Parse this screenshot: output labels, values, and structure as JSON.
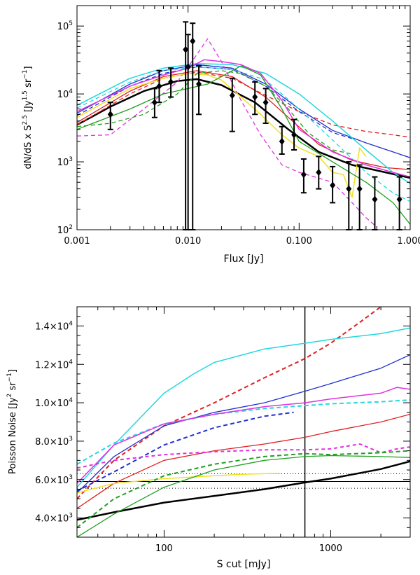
{
  "chart_data": [
    {
      "type": "line",
      "title": "",
      "xlabel": "Flux [Jy]",
      "ylabel": "dN/dS x S^2.5 [Jy^1.5 sr^-1]",
      "xscale": "log",
      "yscale": "log",
      "xlim": [
        0.001,
        1.0
      ],
      "ylim": [
        100,
        200000
      ],
      "x_ticks": [
        0.001,
        0.01,
        0.1,
        1.0
      ],
      "x_tick_labels": [
        "0.001",
        "0.010",
        "0.100",
        "1.000"
      ],
      "y_ticks": [
        100,
        1000,
        10000,
        100000
      ],
      "y_tick_labels": [
        "10^2",
        "10^3",
        "10^4",
        "10^5"
      ],
      "series": [
        {
          "name": "black model",
          "color": "#000000",
          "dash": "solid",
          "width": 2.5,
          "x": [
            0.001,
            0.002,
            0.004,
            0.008,
            0.012,
            0.02,
            0.04,
            0.08,
            0.15,
            0.3,
            0.6,
            1.0
          ],
          "y": [
            3500,
            6500,
            11000,
            15500,
            16500,
            13500,
            7500,
            3000,
            1400,
            900,
            700,
            580
          ]
        },
        {
          "name": "red solid",
          "color": "#e02020",
          "dash": "solid",
          "width": 1.3,
          "x": [
            0.001,
            0.003,
            0.006,
            0.012,
            0.025,
            0.05,
            0.08,
            0.15,
            0.3,
            0.6,
            1.0
          ],
          "y": [
            3800,
            11000,
            18000,
            22000,
            18000,
            9000,
            4500,
            1800,
            1050,
            820,
            770
          ]
        },
        {
          "name": "red dashed",
          "color": "#e02020",
          "dash": "6,4",
          "width": 1.3,
          "x": [
            0.001,
            0.003,
            0.006,
            0.012,
            0.025,
            0.05,
            0.1,
            0.2,
            0.4,
            0.7,
            1.0
          ],
          "y": [
            3500,
            10000,
            17000,
            21000,
            17000,
            9500,
            5500,
            3500,
            2800,
            2500,
            2300
          ]
        },
        {
          "name": "blue solid",
          "color": "#2030d0",
          "dash": "solid",
          "width": 1.3,
          "x": [
            0.001,
            0.003,
            0.006,
            0.012,
            0.025,
            0.05,
            0.1,
            0.2,
            0.4,
            0.7,
            1.0
          ],
          "y": [
            5200,
            14000,
            22000,
            27000,
            24000,
            14000,
            6000,
            2900,
            1900,
            1400,
            1150
          ]
        },
        {
          "name": "blue dashed",
          "color": "#2030d0",
          "dash": "6,4",
          "width": 1.3,
          "x": [
            0.001,
            0.003,
            0.006,
            0.012,
            0.025,
            0.05,
            0.1,
            0.2,
            0.3
          ],
          "y": [
            4800,
            13000,
            20000,
            25000,
            23000,
            13000,
            5500,
            2700,
            2200
          ]
        },
        {
          "name": "cyan solid",
          "color": "#20d8e0",
          "dash": "solid",
          "width": 1.5,
          "x": [
            0.001,
            0.003,
            0.006,
            0.012,
            0.025,
            0.05,
            0.1,
            0.2,
            0.4,
            0.7,
            1.0
          ],
          "y": [
            6800,
            17000,
            24000,
            28000,
            27000,
            20000,
            10000,
            4000,
            1500,
            700,
            480
          ]
        },
        {
          "name": "cyan dashed",
          "color": "#20d8e0",
          "dash": "6,4",
          "width": 1.3,
          "x": [
            0.001,
            0.003,
            0.006,
            0.012,
            0.025,
            0.05,
            0.1,
            0.2,
            0.4,
            0.7,
            1.0
          ],
          "y": [
            6200,
            15000,
            22000,
            25000,
            23000,
            16000,
            6000,
            2100,
            700,
            350,
            260
          ]
        },
        {
          "name": "magenta solid",
          "color": "#e030e0",
          "dash": "solid",
          "width": 1.5,
          "x": [
            0.001,
            0.003,
            0.006,
            0.01,
            0.014,
            0.02,
            0.03,
            0.045,
            0.07,
            0.1,
            0.2,
            0.4,
            0.7,
            1.0
          ],
          "y": [
            5500,
            13000,
            19000,
            24000,
            32000,
            30000,
            27000,
            20000,
            8000,
            3000,
            1400,
            900,
            700,
            600
          ]
        },
        {
          "name": "magenta dashed",
          "color": "#e030e0",
          "dash": "6,4",
          "width": 1.3,
          "x": [
            0.001,
            0.002,
            0.004,
            0.008,
            0.012,
            0.015,
            0.02,
            0.03,
            0.045,
            0.07,
            0.1,
            0.2,
            0.3,
            0.4,
            0.5
          ],
          "y": [
            2400,
            2500,
            6000,
            15000,
            38000,
            65000,
            30000,
            8000,
            2500,
            900,
            700,
            500,
            250,
            150,
            110
          ]
        },
        {
          "name": "yellow solid",
          "color": "#f0e020",
          "dash": "solid",
          "width": 1.5,
          "x": [
            0.001,
            0.003,
            0.006,
            0.01,
            0.015,
            0.02,
            0.03,
            0.045,
            0.07,
            0.1,
            0.15,
            0.2,
            0.25,
            0.3,
            0.35,
            0.4
          ],
          "y": [
            4500,
            12000,
            17000,
            20000,
            19000,
            16000,
            9000,
            5000,
            2500,
            1600,
            1200,
            700,
            650,
            300,
            1600,
            1200
          ]
        },
        {
          "name": "green solid",
          "color": "#20a020",
          "dash": "solid",
          "width": 1.3,
          "x": [
            0.001,
            0.003,
            0.006,
            0.01,
            0.015,
            0.02,
            0.03,
            0.045,
            0.07,
            0.1,
            0.2,
            0.4,
            0.7,
            1.0
          ],
          "y": [
            3000,
            6000,
            10000,
            12000,
            14000,
            18000,
            26000,
            19000,
            6000,
            2000,
            1000,
            500,
            250,
            120
          ]
        },
        {
          "name": "green dashed",
          "color": "#20a020",
          "dash": "6,4",
          "width": 1.3,
          "x": [
            0.001,
            0.002,
            0.004,
            0.008,
            0.012,
            0.02,
            0.03,
            0.05,
            0.08,
            0.12,
            0.2,
            0.3
          ],
          "y": [
            3300,
            3700,
            5000,
            10000,
            20000,
            22000,
            20000,
            13000,
            6000,
            2700,
            1500,
            1300
          ]
        }
      ],
      "points": {
        "name": "data points with error bars",
        "color": "#000000",
        "x": [
          0.002,
          0.005,
          0.0055,
          0.007,
          0.0095,
          0.01,
          0.011,
          0.0125,
          0.025,
          0.04,
          0.05,
          0.07,
          0.09,
          0.11,
          0.15,
          0.2,
          0.28,
          0.35,
          0.48,
          0.8
        ],
        "y": [
          5000,
          7500,
          13000,
          15000,
          45000,
          25000,
          60000,
          14000,
          9500,
          9000,
          7500,
          2000,
          2500,
          650,
          700,
          450,
          400,
          400,
          280,
          280
        ],
        "y_low": [
          3000,
          4500,
          7500,
          9000,
          100,
          100,
          100,
          5000,
          2800,
          5000,
          3700,
          1300,
          1500,
          350,
          400,
          250,
          100,
          100,
          100,
          100
        ],
        "y_high": [
          7500,
          12000,
          22000,
          24000,
          115000,
          75000,
          110000,
          26000,
          17000,
          15000,
          12000,
          3300,
          4200,
          1100,
          1200,
          850,
          1000,
          900,
          600,
          600
        ]
      }
    },
    {
      "type": "line",
      "title": "",
      "xlabel": "S cut [mJy]",
      "ylabel": "Poisson Noise [Jy^2 sr^-1]",
      "xscale": "log",
      "yscale": "linear",
      "xlim": [
        30,
        3000
      ],
      "ylim": [
        3000,
        15000
      ],
      "x_ticks": [
        100,
        1000
      ],
      "x_tick_labels": [
        "100",
        "1000"
      ],
      "y_ticks": [
        4000,
        6000,
        8000,
        10000,
        12000,
        14000
      ],
      "y_tick_labels": [
        "4.0×10^3",
        "6.0×10^3",
        "8.0×10^3",
        "1.0×10^4",
        "1.2×10^4",
        "1.4×10^4"
      ],
      "vertical_line_x": 700,
      "horizontal_dotted_y": [
        5550,
        6300
      ],
      "horizontal_solid_y": 5900,
      "series": [
        {
          "name": "black model",
          "color": "#000000",
          "dash": "solid",
          "width": 2.5,
          "x": [
            30,
            50,
            100,
            200,
            400,
            700,
            1000,
            2000,
            3000
          ],
          "y": [
            3900,
            4300,
            4800,
            5150,
            5500,
            5850,
            6050,
            6550,
            6950
          ]
        },
        {
          "name": "red solid",
          "color": "#e02020",
          "dash": "solid",
          "width": 1.3,
          "x": [
            30,
            50,
            100,
            200,
            400,
            700,
            1000,
            2000,
            3000
          ],
          "y": [
            4500,
            5800,
            7000,
            7500,
            7850,
            8200,
            8500,
            9000,
            9400
          ]
        },
        {
          "name": "red dashed",
          "color": "#e02020",
          "dash": "6,4",
          "width": 2,
          "x": [
            30,
            50,
            100,
            200,
            400,
            700,
            1000,
            1500,
            2000
          ],
          "y": [
            5000,
            7000,
            8800,
            10000,
            11300,
            12300,
            13100,
            14200,
            15000
          ]
        },
        {
          "name": "blue solid",
          "color": "#2030d0",
          "dash": "solid",
          "width": 1.3,
          "x": [
            30,
            50,
            100,
            200,
            400,
            700,
            1000,
            2000,
            3000
          ],
          "y": [
            5300,
            7200,
            8800,
            9500,
            10000,
            10600,
            11000,
            11800,
            12500
          ]
        },
        {
          "name": "blue dashed",
          "color": "#2030d0",
          "dash": "6,4",
          "width": 2,
          "x": [
            30,
            50,
            100,
            200,
            400,
            600
          ],
          "y": [
            5400,
            6400,
            7800,
            8700,
            9300,
            9500
          ]
        },
        {
          "name": "cyan solid",
          "color": "#20d8e0",
          "dash": "solid",
          "width": 1.5,
          "x": [
            30,
            50,
            100,
            150,
            200,
            400,
            700,
            1000,
            2000,
            3000
          ],
          "y": [
            5600,
            7800,
            10500,
            11500,
            12100,
            12800,
            13100,
            13300,
            13600,
            13900
          ]
        },
        {
          "name": "cyan dashed",
          "color": "#20d8e0",
          "dash": "6,4",
          "width": 2,
          "x": [
            30,
            50,
            100,
            200,
            400,
            700,
            1000,
            2000,
            3000
          ],
          "y": [
            6800,
            7900,
            8900,
            9400,
            9700,
            9850,
            9950,
            10050,
            10150
          ]
        },
        {
          "name": "magenta solid",
          "color": "#e030e0",
          "dash": "solid",
          "width": 1.5,
          "x": [
            30,
            50,
            100,
            200,
            400,
            700,
            1000,
            2000,
            2500,
            3000
          ],
          "y": [
            5800,
            7800,
            8900,
            9400,
            9800,
            10000,
            10200,
            10500,
            10800,
            10700
          ]
        },
        {
          "name": "magenta dashed",
          "color": "#e030e0",
          "dash": "5,4",
          "width": 2,
          "x": [
            30,
            50,
            100,
            200,
            400,
            700,
            1000,
            1500,
            2000,
            2500,
            3000
          ],
          "y": [
            6600,
            7000,
            7300,
            7450,
            7550,
            7550,
            7600,
            7850,
            7400,
            7600,
            7700
          ]
        },
        {
          "name": "yellow solid",
          "color": "#f0e020",
          "dash": "solid",
          "width": 1.5,
          "x": [
            30,
            50,
            100,
            200,
            300,
            500
          ],
          "y": [
            5300,
            5800,
            6050,
            6200,
            6280,
            6330
          ]
        },
        {
          "name": "green solid",
          "color": "#20a020",
          "dash": "solid",
          "width": 1.3,
          "x": [
            30,
            50,
            100,
            200,
            400,
            700,
            1000,
            2000,
            3000
          ],
          "y": [
            3000,
            4200,
            5600,
            6500,
            7000,
            7200,
            7250,
            7200,
            7150
          ]
        },
        {
          "name": "green dashed",
          "color": "#20a020",
          "dash": "6,4",
          "width": 2,
          "x": [
            30,
            50,
            100,
            200,
            400,
            700,
            1000,
            2000,
            3000
          ],
          "y": [
            3500,
            5000,
            6200,
            6800,
            7200,
            7350,
            7300,
            7400,
            7500
          ]
        }
      ]
    }
  ]
}
